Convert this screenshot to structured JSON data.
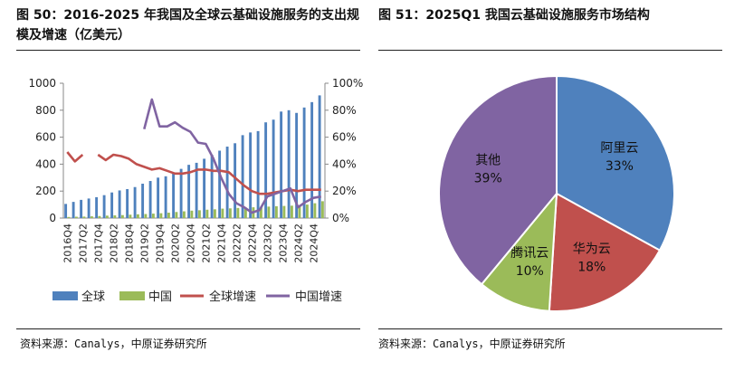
{
  "left": {
    "title": "图 50：2016-2025 年我国及全球云基础设施服务的支出规模及增速（亿美元）",
    "source": "资料来源：Canalys，中原证券研究所"
  },
  "right": {
    "title": "图 51：2025Q1 我国云基础设施服务市场结构",
    "source": "资料来源：Canalys，中原证券研究所"
  },
  "chart_data": [
    {
      "type": "bar",
      "title": "2016-2025 年我国及全球云基础设施服务的支出规模及增速（亿美元）",
      "ylim": [
        0,
        1000
      ],
      "y_ticks": [
        "0",
        "200",
        "400",
        "600",
        "800",
        "1000"
      ],
      "y2lim": [
        0,
        1.0
      ],
      "y2_ticks": [
        "0%",
        "20%",
        "40%",
        "60%",
        "80%",
        "100%"
      ],
      "tick_labels": [
        "2016Q4",
        "2017Q2",
        "2017Q4",
        "2018Q2",
        "2018Q4",
        "2019Q2",
        "2019Q4",
        "2020Q2",
        "2020Q4",
        "2021Q2",
        "2021Q4",
        "2022Q2",
        "2022Q4",
        "2023Q2",
        "2023Q4",
        "2024Q2",
        "2024Q4"
      ],
      "categories": [
        "2016Q4",
        "2017Q1",
        "2017Q2",
        "2017Q3",
        "2017Q4",
        "2018Q1",
        "2018Q2",
        "2018Q3",
        "2018Q4",
        "2019Q1",
        "2019Q2",
        "2019Q3",
        "2019Q4",
        "2020Q1",
        "2020Q2",
        "2020Q3",
        "2020Q4",
        "2021Q1",
        "2021Q2",
        "2021Q3",
        "2021Q4",
        "2022Q1",
        "2022Q2",
        "2022Q3",
        "2022Q4",
        "2023Q1",
        "2023Q2",
        "2023Q3",
        "2023Q4",
        "2024Q1",
        "2024Q2",
        "2024Q3",
        "2024Q4",
        "2025Q1"
      ],
      "series": [
        {
          "name": "全球",
          "type": "bar",
          "axis": "left",
          "color": "#4F81BD",
          "values": [
            105,
            120,
            135,
            145,
            155,
            170,
            190,
            205,
            215,
            230,
            255,
            275,
            300,
            310,
            330,
            365,
            395,
            410,
            440,
            470,
            500,
            530,
            555,
            615,
            635,
            645,
            710,
            730,
            790,
            800,
            780,
            820,
            860,
            910
          ]
        },
        {
          "name": "中国",
          "type": "bar",
          "axis": "left",
          "color": "#9BBB59",
          "values": [
            8,
            10,
            11,
            13,
            15,
            18,
            20,
            22,
            25,
            28,
            30,
            33,
            36,
            40,
            45,
            50,
            55,
            58,
            62,
            65,
            70,
            72,
            75,
            78,
            80,
            82,
            85,
            88,
            90,
            92,
            95,
            100,
            110,
            125
          ]
        },
        {
          "name": "全球增速",
          "type": "line",
          "axis": "right",
          "color": "#C0504D",
          "values": [
            0.49,
            0.42,
            0.47,
            null,
            0.47,
            0.43,
            0.47,
            0.46,
            0.44,
            0.4,
            0.38,
            0.36,
            0.37,
            0.35,
            0.33,
            0.33,
            0.34,
            0.36,
            0.36,
            0.35,
            0.35,
            0.34,
            0.29,
            0.24,
            0.2,
            0.18,
            0.18,
            0.19,
            0.2,
            0.21,
            0.2,
            0.21,
            0.21,
            0.21
          ]
        },
        {
          "name": "中国增速",
          "type": "line",
          "axis": "right",
          "color": "#8064A2",
          "values": [
            null,
            null,
            null,
            null,
            null,
            null,
            null,
            null,
            null,
            null,
            0.66,
            0.88,
            0.68,
            0.68,
            0.71,
            0.67,
            0.64,
            0.56,
            0.55,
            0.44,
            0.3,
            0.18,
            0.11,
            0.08,
            0.04,
            0.06,
            0.16,
            0.18,
            0.2,
            0.22,
            0.08,
            0.12,
            0.15,
            0.16
          ]
        }
      ]
    },
    {
      "type": "pie",
      "title": "2025Q1 我国云基础设施服务市场结构",
      "slices": [
        {
          "label": "阿里云",
          "value": 33,
          "display": "33%",
          "color": "#4F81BD"
        },
        {
          "label": "华为云",
          "value": 18,
          "display": "18%",
          "color": "#C0504D"
        },
        {
          "label": "腾讯云",
          "value": 10,
          "display": "10%",
          "color": "#9BBB59"
        },
        {
          "label": "其他",
          "value": 39,
          "display": "39%",
          "color": "#8064A2"
        }
      ]
    }
  ]
}
